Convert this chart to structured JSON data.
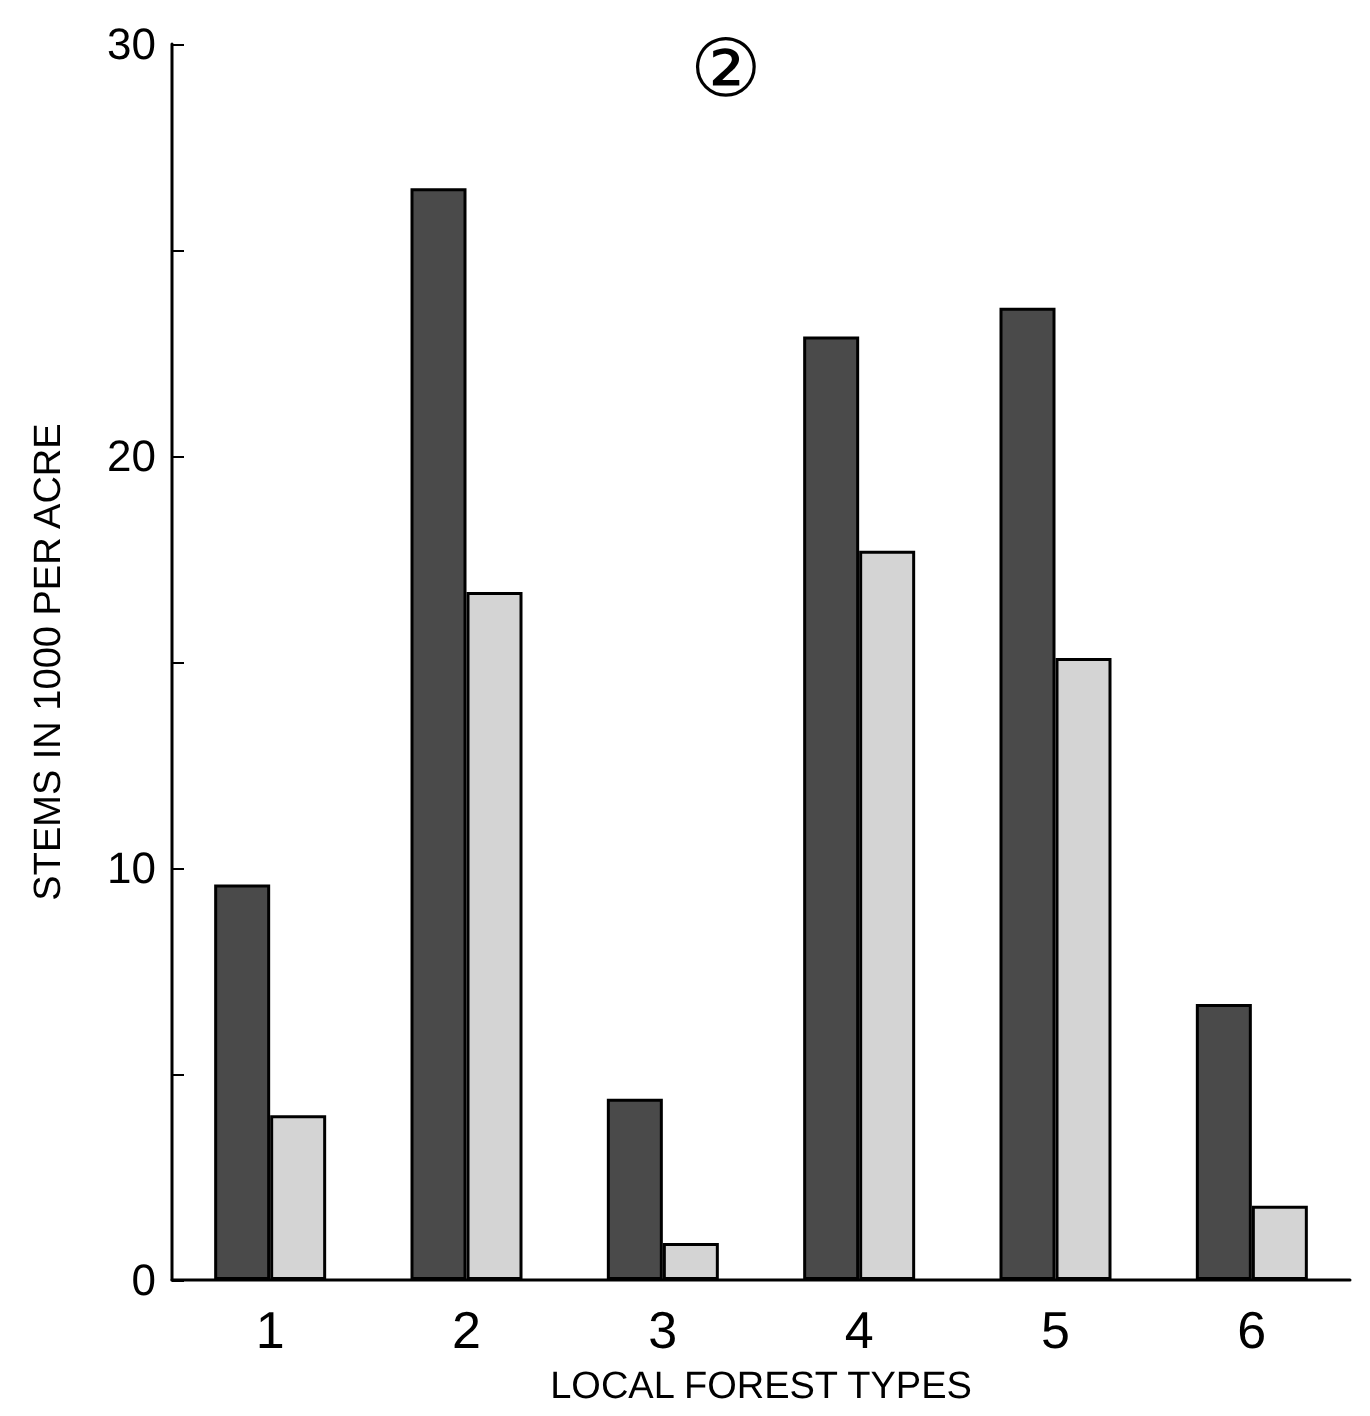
{
  "chart_data": {
    "type": "bar",
    "title": "②",
    "xlabel": "LOCAL FOREST TYPES",
    "ylabel": "STEMS IN 1000 PER ACRE",
    "categories": [
      "1",
      "2",
      "3",
      "4",
      "5",
      "6"
    ],
    "series": [
      {
        "color": "#4a4a4a",
        "values": [
          9.6,
          26.5,
          4.4,
          22.9,
          23.6,
          6.7
        ]
      },
      {
        "color": "#d4d4d4",
        "values": [
          4.0,
          16.7,
          0.9,
          17.7,
          15.1,
          1.8
        ]
      }
    ],
    "ylim": [
      0,
      30
    ],
    "yticks": [
      0,
      {
        "value": 5,
        "label": null
      },
      10,
      {
        "value": 15,
        "label": null
      },
      20,
      {
        "value": 25,
        "label": null
      },
      30
    ],
    "grid": false
  }
}
